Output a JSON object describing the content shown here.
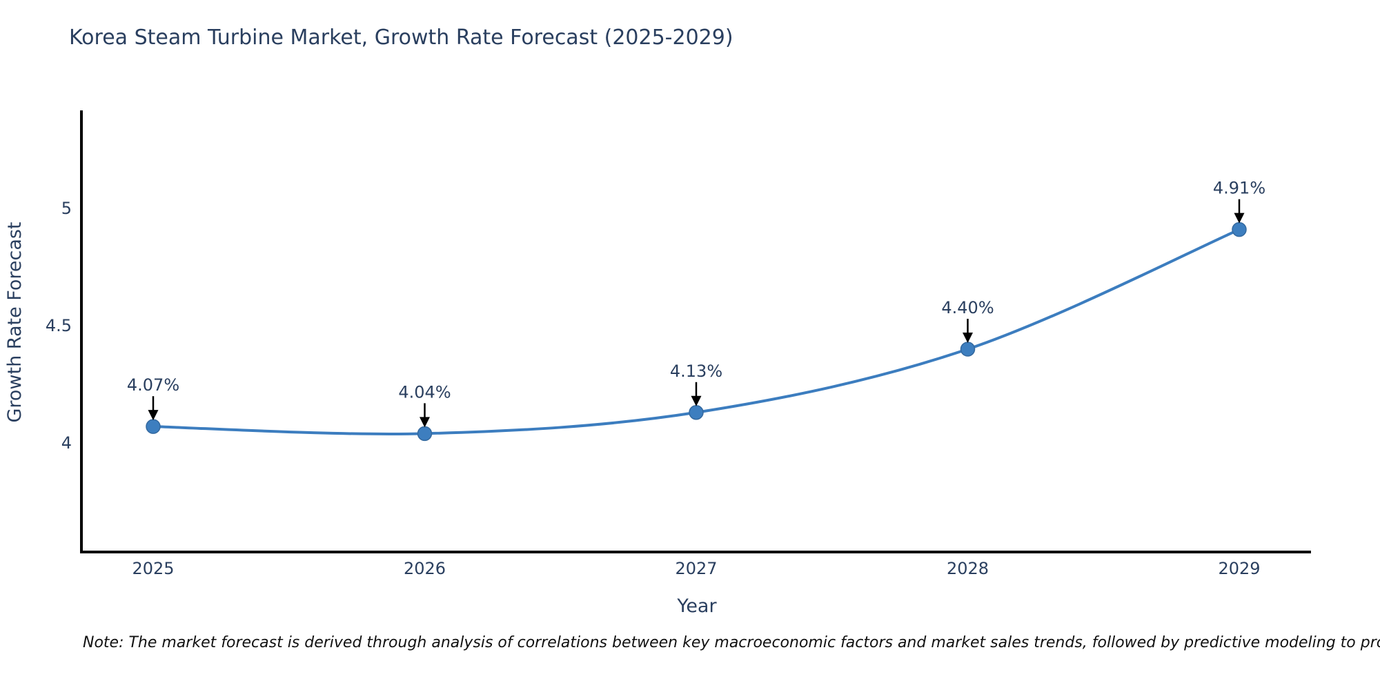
{
  "chart_data": {
    "type": "line",
    "title": "Korea Steam Turbine Market, Growth Rate Forecast (2025-2029)",
    "categories": [
      "2025",
      "2026",
      "2027",
      "2028",
      "2029"
    ],
    "series": [
      {
        "name": "Growth Rate Forecast",
        "values": [
          4.07,
          4.04,
          4.13,
          4.4,
          4.91
        ]
      }
    ],
    "point_labels": [
      "4.07%",
      "4.04%",
      "4.13%",
      "4.40%",
      "4.91%"
    ],
    "xlabel": "Year",
    "ylabel": "Growth Rate Forecast",
    "yticks": [
      4,
      4.5,
      5
    ],
    "ytick_labels": [
      "4",
      "4.5",
      "5"
    ],
    "ylim": [
      3.535,
      5.418
    ],
    "grid": false,
    "legend_position": "none",
    "line_shape": "spline",
    "line_color": "#3c7dbf",
    "marker_color": "#3d7ebf",
    "marker_edge_color": "#34699f",
    "arrow_color": "#000000",
    "text_color": "#2a3f5f",
    "axis_color": "#000000",
    "background_color": "#ffffff"
  },
  "note": "Note: The market forecast is derived through analysis of correlations between key macroeconomic factors and market sales trends, followed by predictive modeling to project future sales"
}
